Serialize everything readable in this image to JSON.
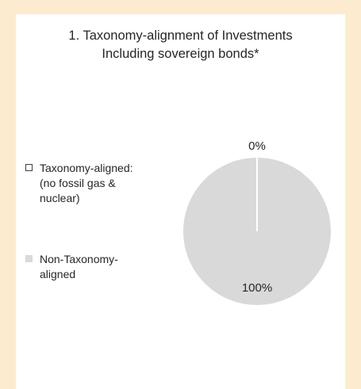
{
  "chart_data": {
    "type": "pie",
    "title": "1. Taxonomy-alignment of Investments\nIncluding sovereign bonds*",
    "categories": [
      "Taxonomy-aligned:\n(no fossil gas &\nnuclear)",
      "Non-Taxonomy-\naligned"
    ],
    "values": [
      0,
      100
    ],
    "data_labels": [
      "0%",
      "100%"
    ],
    "colors": [
      "#ffffff",
      "#d9d9d9"
    ],
    "legend": "left"
  }
}
